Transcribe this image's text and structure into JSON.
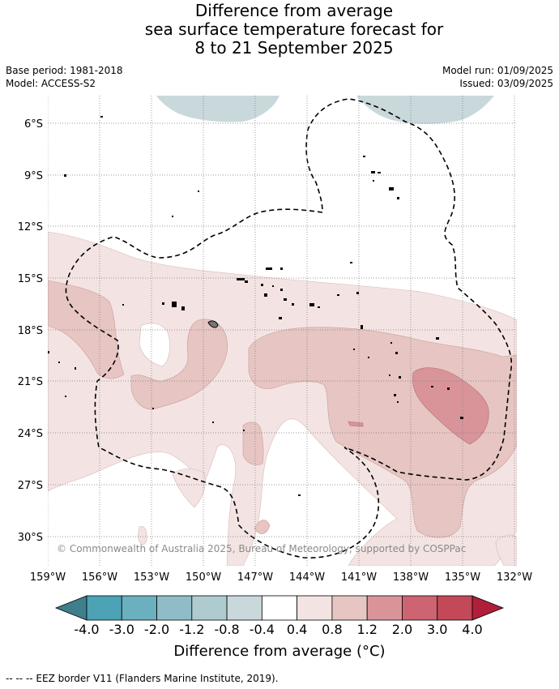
{
  "title": {
    "line1": "Difference from average",
    "line2": "sea surface temperature forecast for",
    "line3": "8 to 21 September 2025"
  },
  "meta": {
    "base_period": "Base period: 1981-2018",
    "model": "Model: ACCESS-S2",
    "model_run": "Model run: 01/09/2025",
    "issued": "Issued: 03/09/2025"
  },
  "map": {
    "lat_labels": [
      "6°S",
      "9°S",
      "12°S",
      "15°S",
      "18°S",
      "21°S",
      "24°S",
      "27°S",
      "30°S"
    ],
    "lon_labels": [
      "159°W",
      "156°W",
      "153°W",
      "150°W",
      "147°W",
      "144°W",
      "141°W",
      "138°W",
      "135°W",
      "132°W"
    ],
    "copyright": "© Commonwealth of Australia 2025, Bureau of Meteorology, supported by COSPPac"
  },
  "colorbar": {
    "ticks": [
      "-4.0",
      "-3.0",
      "-2.0",
      "-1.2",
      "-0.8",
      "-0.4",
      "0.4",
      "0.8",
      "1.2",
      "2.0",
      "3.0",
      "4.0"
    ],
    "colors": [
      "#3f7f8c",
      "#4ba3b5",
      "#6ab0bf",
      "#8fbcc7",
      "#aecbd0",
      "#c9d8db",
      "#ffffff",
      "#f3e4e3",
      "#e6c5c2",
      "#d9949a",
      "#cc6471",
      "#c34858",
      "#b01f3a"
    ],
    "title": "Difference from average (°C)"
  },
  "footer": "-- -- -- EEZ border V11 (Flanders Marine Institute, 2019)."
}
